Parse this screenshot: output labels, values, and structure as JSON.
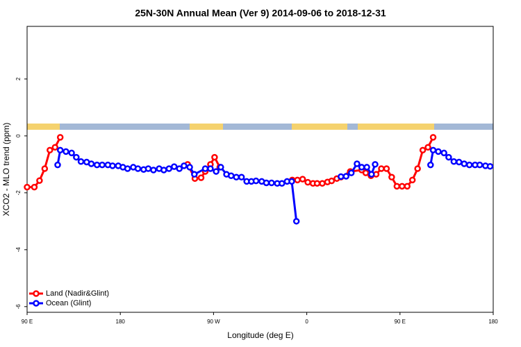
{
  "chart_data": {
    "type": "line",
    "title": "25N-30N Annual Mean (Ver 9)   2014-09-06 to 2018-12-31",
    "x_label": "Longitude (deg E)",
    "y_label": "XCO2 - MLO trend (ppm)",
    "xlim": [
      90,
      540
    ],
    "xticks": [
      {
        "value": 90,
        "label": "90 E"
      },
      180,
      {
        "value": 270,
        "label": "90 W"
      },
      {
        "value": 360,
        "label": "0"
      },
      {
        "value": 450,
        "label": "90 E"
      },
      {
        "value": 540,
        "label": "180"
      }
    ],
    "ylim": [
      -6.2,
      3.85
    ],
    "yticks": [
      -6,
      -4,
      -2,
      0,
      2
    ],
    "legend": "bottom-left",
    "series": [
      {
        "name": "Land (Nadir&Glint)",
        "color": "#ff0000",
        "x": [
          90,
          97,
          102,
          107,
          112,
          117,
          122,
          200,
          245,
          252,
          258,
          262,
          267,
          271,
          276,
          320,
          346,
          351,
          356,
          361,
          366,
          370,
          375,
          380,
          384,
          389,
          393,
          402,
          413,
          417,
          422,
          427,
          432,
          437,
          442,
          447,
          452,
          457,
          462,
          467,
          472,
          477,
          482
        ],
        "values": [
          -1.8,
          -1.8,
          -1.57,
          -1.15,
          -0.5,
          -0.4,
          -0.05,
          null,
          -1.0,
          -1.5,
          -1.47,
          -1.25,
          -1.0,
          -0.75,
          -1.1,
          null,
          -1.55,
          -1.55,
          -1.52,
          -1.63,
          -1.67,
          -1.67,
          -1.67,
          -1.62,
          -1.58,
          -1.5,
          -1.45,
          -1.25,
          -1.2,
          -1.3,
          -1.4,
          -1.35,
          -1.15,
          -1.15,
          -1.45,
          -1.77,
          -1.77,
          -1.77,
          -1.55,
          -1.15,
          -0.5,
          -0.4,
          -0.05
        ]
      },
      {
        "name": "Ocean (Glint)",
        "color": "#0000ff",
        "x": [
          119.5,
          122,
          127.5,
          133,
          137.5,
          142,
          147.5,
          152,
          157.5,
          162.5,
          168,
          172.5,
          178,
          182.5,
          187,
          192.5,
          197,
          202.5,
          207,
          212,
          217.5,
          222,
          227,
          232,
          237,
          241.5,
          247,
          251.5,
          262,
          267,
          272.5,
          277,
          282.5,
          287,
          292,
          297,
          302,
          306.5,
          311,
          316.5,
          321,
          326,
          331.5,
          336,
          341,
          345.5,
          350,
          370,
          393,
          398,
          403,
          408.5,
          413,
          418,
          422.5,
          426,
          450,
          479.5,
          482,
          487,
          492.5,
          497,
          502,
          507,
          512,
          517,
          522.5,
          527,
          532.5,
          537
        ],
        "values": [
          -1.02,
          -0.5,
          -0.55,
          -0.6,
          -0.75,
          -0.9,
          -0.92,
          -0.98,
          -1.02,
          -1.02,
          -1.02,
          -1.05,
          -1.05,
          -1.1,
          -1.15,
          -1.1,
          -1.15,
          -1.18,
          -1.15,
          -1.2,
          -1.15,
          -1.2,
          -1.15,
          -1.08,
          -1.15,
          -1.05,
          -1.1,
          -1.35,
          -1.15,
          -1.15,
          -1.25,
          -1.1,
          -1.35,
          -1.4,
          -1.45,
          -1.45,
          -1.6,
          -1.6,
          -1.58,
          -1.6,
          -1.65,
          -1.65,
          -1.67,
          -1.67,
          -1.6,
          -1.6,
          -3.0,
          null,
          -1.43,
          -1.42,
          -1.3,
          -0.98,
          -1.1,
          -1.1,
          -1.35,
          -1.0,
          null,
          -1.02,
          -0.5,
          -0.55,
          -0.6,
          -0.75,
          -0.9,
          -0.92,
          -0.98,
          -1.02,
          -1.02,
          -1.02,
          -1.05,
          -1.07
        ]
      }
    ]
  }
}
